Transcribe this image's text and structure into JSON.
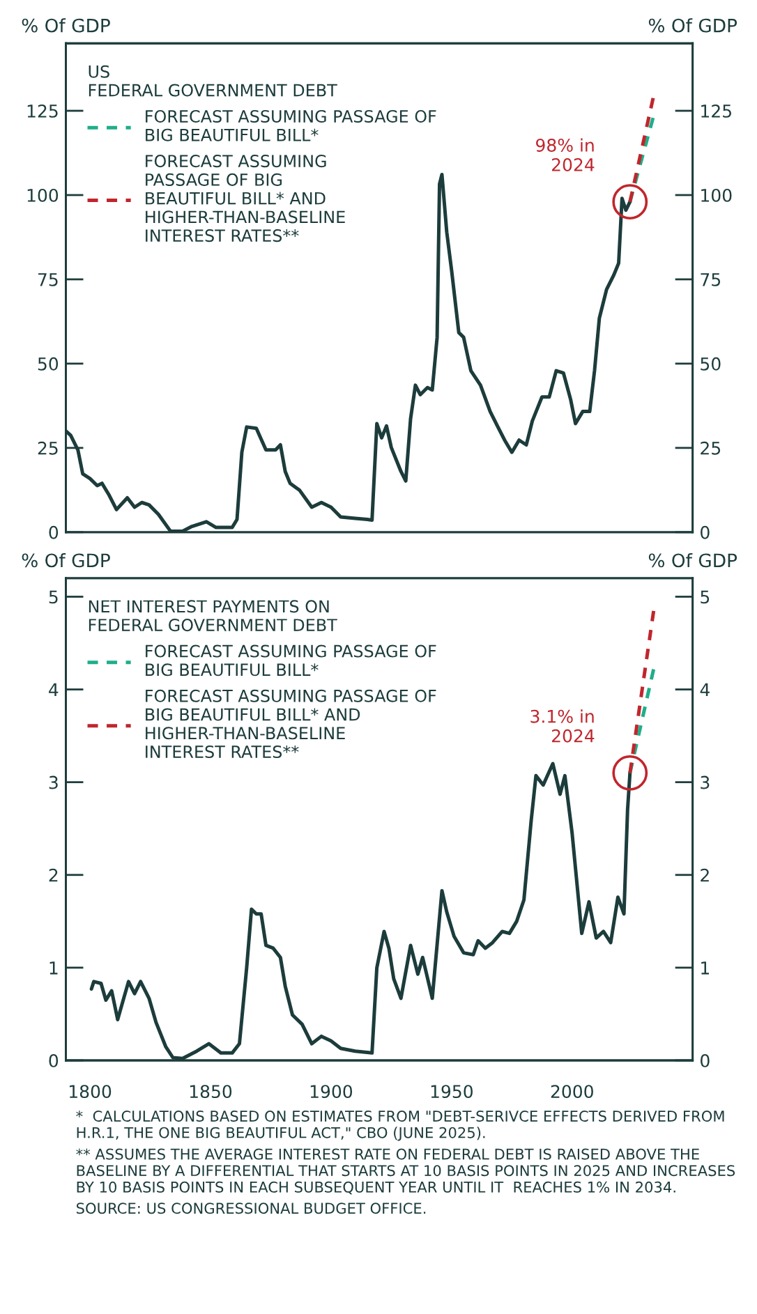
{
  "chart_data": [
    {
      "type": "line",
      "legend_title": "US\nFEDERAL GOVERNMENT DEBT",
      "ylabel": "% Of GDP",
      "y2label": "% Of GDP",
      "xlim": [
        1790,
        2050
      ],
      "ylim": [
        0,
        145
      ],
      "yticks": [
        0,
        25,
        50,
        75,
        100,
        125
      ],
      "y2lim": [
        0,
        145
      ],
      "y2ticks": [
        0,
        25,
        50,
        75,
        100,
        125
      ],
      "tick_labels": "y",
      "grid": false,
      "legend": "top left",
      "line_style": "solid",
      "series": [
        {
          "color": "#1d3c3c",
          "x": [
            1790,
            1792,
            1795,
            1797,
            1800,
            1803,
            1805,
            1808,
            1811,
            1815.5,
            1818.5,
            1821.5,
            1824.5,
            1828.4,
            1833.4,
            1838.4,
            1842.3,
            1848.3,
            1852.3,
            1859,
            1861,
            1863,
            1865,
            1869,
            1873,
            1877,
            1879,
            1881,
            1883,
            1887,
            1892,
            1896,
            1900,
            1904,
            1910,
            1915,
            1917,
            1919,
            1921,
            1923,
            1925,
            1929,
            1931,
            1933,
            1935,
            1937,
            1940,
            1942,
            1944,
            1945,
            1946,
            1948,
            1950,
            1953,
            1955,
            1958,
            1962,
            1966,
            1969,
            1972,
            1975,
            1978,
            1981,
            1983.5,
            1987.5,
            1990.5,
            1993.4,
            1996.4,
            1999.4,
            2001.4,
            2004.4,
            2007.3,
            2009.3,
            2011.3,
            2014.3,
            2017.3,
            2019.3,
            2020.7,
            2022.3,
            2024
          ],
          "values": [
            30,
            28.7,
            24.4,
            17.3,
            15.9,
            13.8,
            14.5,
            10.9,
            6.7,
            10.2,
            7.4,
            8.8,
            8.1,
            5.3,
            0.3,
            0.3,
            1.7,
            3.1,
            1.4,
            1.4,
            3.8,
            23.7,
            31.2,
            30.8,
            24.4,
            24.4,
            25.9,
            18,
            14.5,
            12.4,
            7.4,
            8.8,
            7.4,
            4.5,
            4.1,
            3.8,
            3.6,
            32.2,
            28,
            31.5,
            25.1,
            18,
            15.2,
            33.7,
            43.6,
            40.8,
            42.9,
            42.2,
            57.8,
            103.3,
            106.1,
            89,
            77.7,
            59.2,
            57.8,
            47.9,
            43.6,
            35.8,
            31.5,
            27.3,
            23.7,
            27.3,
            25.9,
            33,
            40.1,
            40.1,
            47.9,
            47.2,
            39.3,
            32.2,
            35.8,
            35.8,
            47.9,
            63.5,
            72,
            76.3,
            79.8,
            99,
            95.5,
            98
          ]
        },
        {
          "name": "FORECAST ASSUMING PASSAGE OF\nBIG BEAUTIFUL BILL*",
          "color": "#1fae8a",
          "line_style": "dashed",
          "x": [
            2024,
            2034
          ],
          "values": [
            98,
            124
          ]
        },
        {
          "name": "FORECAST ASSUMING\nPASSAGE OF BIG\nBEAUTIFUL BILL* AND\nHIGHER-THAN-BASELINE\nINTEREST RATES**",
          "color": "#c0262d",
          "line_style": "dashed",
          "x": [
            2024,
            2034
          ],
          "values": [
            98,
            130
          ]
        }
      ],
      "annotations": [
        {
          "text": "98% in\n2024",
          "x": 2024,
          "y": 98
        }
      ]
    },
    {
      "type": "line",
      "legend_title": "NET INTEREST PAYMENTS ON\nFEDERAL GOVERNMENT DEBT",
      "ylabel": "% Of GDP",
      "y2label": "% Of GDP",
      "xlim": [
        1790,
        2050
      ],
      "xticks": [
        1800,
        1850,
        1900,
        1950,
        2000
      ],
      "ylim": [
        0,
        5.2
      ],
      "yticks": [
        0,
        1,
        2,
        3,
        4,
        5
      ],
      "y2lim": [
        0,
        5.2
      ],
      "y2ticks": [
        0,
        1,
        2,
        3,
        4,
        5
      ],
      "grid": false,
      "legend": "top left",
      "line_style": "solid",
      "series": [
        {
          "color": "#1d3c3c",
          "x": [
            1800.6,
            1801.6,
            1804.6,
            1806.6,
            1809,
            1811.5,
            1814,
            1816,
            1818.5,
            1821,
            1824.5,
            1827.4,
            1831.4,
            1834.4,
            1838.4,
            1844.3,
            1849.3,
            1854.3,
            1859,
            1862,
            1865,
            1867,
            1869,
            1871,
            1873,
            1876,
            1879,
            1881,
            1884,
            1888,
            1892,
            1896,
            1900,
            1904,
            1910,
            1917,
            1919,
            1922,
            1924,
            1926,
            1929,
            1933,
            1936,
            1938,
            1942,
            1946,
            1948,
            1951,
            1955,
            1959,
            1961,
            1964,
            1967,
            1971,
            1974,
            1977,
            1980,
            1983,
            1985,
            1988,
            1992,
            1995,
            1997,
            2000,
            2004,
            2007,
            2010,
            2013,
            2016,
            2019,
            2021.5,
            2023,
            2024
          ],
          "values": [
            0.77,
            0.85,
            0.83,
            0.65,
            0.75,
            0.44,
            0.67,
            0.85,
            0.72,
            0.85,
            0.67,
            0.41,
            0.15,
            0.03,
            0.02,
            0.1,
            0.18,
            0.08,
            0.08,
            0.18,
            1.0,
            1.63,
            1.58,
            1.58,
            1.24,
            1.21,
            1.11,
            0.8,
            0.49,
            0.39,
            0.18,
            0.26,
            0.21,
            0.13,
            0.1,
            0.08,
            1.0,
            1.39,
            1.21,
            0.88,
            0.67,
            1.24,
            0.93,
            1.11,
            0.67,
            1.83,
            1.6,
            1.34,
            1.16,
            1.14,
            1.29,
            1.21,
            1.27,
            1.39,
            1.37,
            1.5,
            1.73,
            2.58,
            3.07,
            2.97,
            3.2,
            2.87,
            3.07,
            2.45,
            1.37,
            1.71,
            1.32,
            1.39,
            1.27,
            1.76,
            1.58,
            2.7,
            3.1
          ]
        },
        {
          "name": "FORECAST ASSUMING PASSAGE OF\nBIG BEAUTIFUL BILL*",
          "color": "#1fae8a",
          "line_style": "dashed",
          "x": [
            2024,
            2034
          ],
          "values": [
            3.1,
            4.24
          ]
        },
        {
          "name": "FORECAST ASSUMING PASSAGE OF\nBIG BEAUTIFUL BILL* AND\nHIGHER-THAN-BASELINE\nINTEREST RATES**",
          "color": "#c0262d",
          "line_style": "dashed",
          "x": [
            2024,
            2034
          ],
          "values": [
            3.1,
            4.88
          ]
        }
      ],
      "annotations": [
        {
          "text": "3.1% in\n2024",
          "x": 2024,
          "y": 3.1
        },
        "*  CALCULATIONS BASED ON ESTIMATES FROM \"DEBT-SERIVCE EFFECTS DERIVED FROM H.R.1, THE ONE BIG BEAUTIFUL ACT,\" CBO (JUNE 2025).",
        "** ASSUMES THE AVERAGE INTEREST RATE ON FEDERAL DEBT IS RAISED ABOVE THE BASELINE BY A DIFFERENTIAL THAT STARTS AT 10 BASIS POINTS IN 2025 AND INCREASES BY 10 BASIS POINTS IN EACH SUBSEQUENT YEAR UNTIL IT  REACHES 1% IN 2034.",
        "SOURCE: US CONGRESSIONAL BUDGET OFFICE."
      ]
    }
  ]
}
